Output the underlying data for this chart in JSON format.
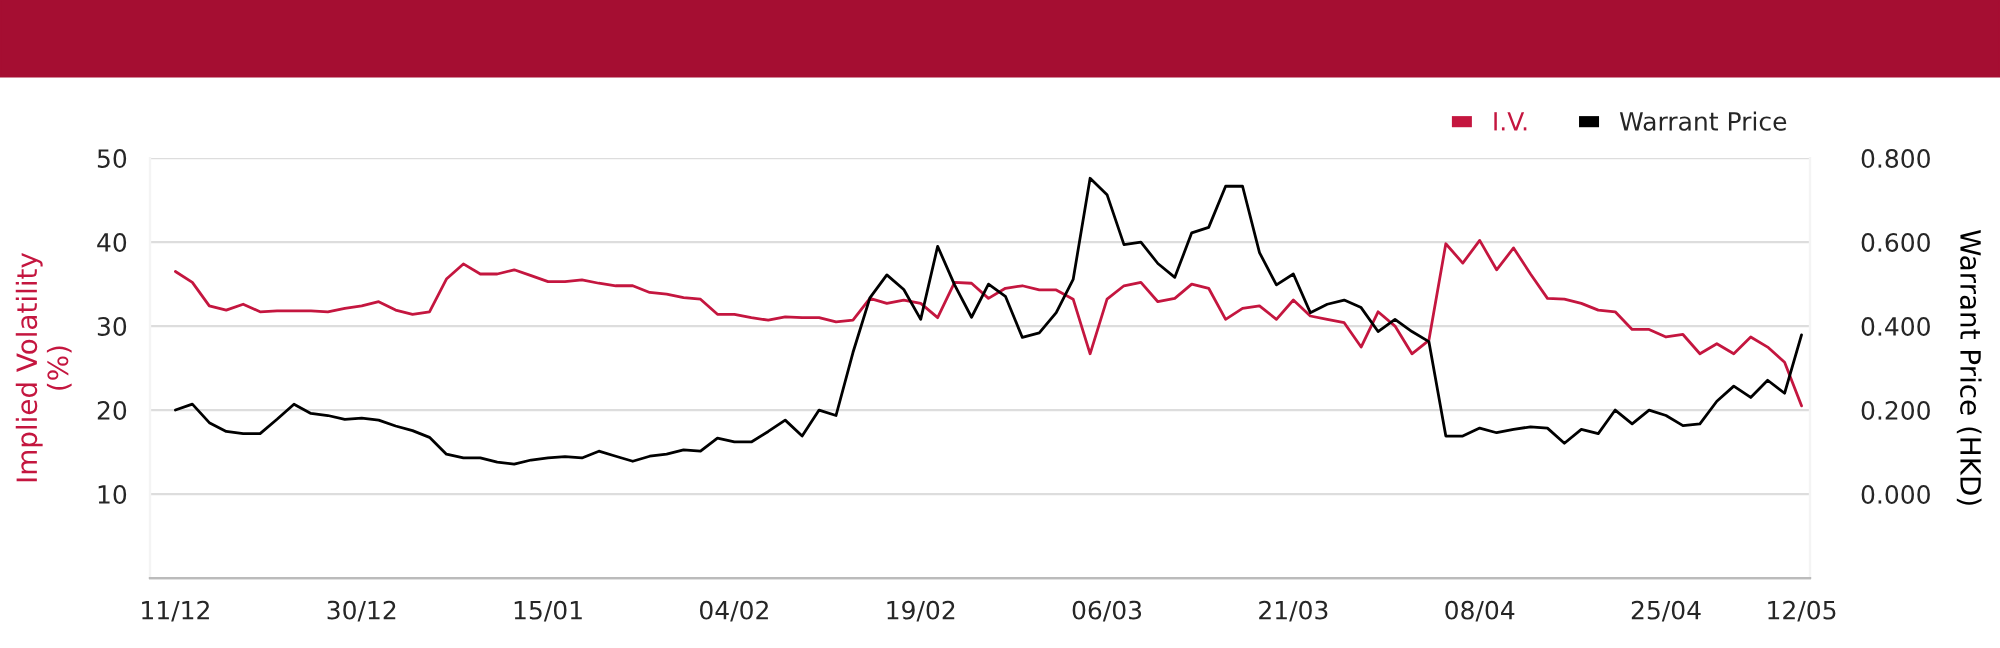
{
  "chart_data": {
    "type": "line",
    "categories": [
      "11/12",
      null,
      null,
      null,
      null,
      null,
      null,
      null,
      null,
      null,
      null,
      "30/12",
      null,
      null,
      null,
      null,
      null,
      null,
      null,
      null,
      null,
      null,
      "15/01",
      null,
      null,
      null,
      null,
      null,
      null,
      null,
      null,
      null,
      null,
      "04/02",
      null,
      null,
      null,
      null,
      null,
      null,
      null,
      null,
      null,
      null,
      "19/02",
      null,
      null,
      null,
      null,
      null,
      null,
      null,
      null,
      null,
      null,
      "06/03",
      null,
      null,
      null,
      null,
      null,
      null,
      null,
      null,
      null,
      null,
      "21/03",
      null,
      null,
      null,
      null,
      null,
      null,
      null,
      null,
      null,
      null,
      "08/04",
      null,
      null,
      null,
      null,
      null,
      null,
      null,
      null,
      null,
      null,
      "25/04",
      null,
      null,
      null,
      null,
      null,
      null,
      null,
      "12/05"
    ],
    "series": [
      {
        "name": "I.V.",
        "color": "#c4163f",
        "values": [
          36.5,
          35.2,
          32.4,
          31.9,
          32.6,
          31.7,
          31.8,
          31.8,
          31.8,
          31.7,
          32.1,
          32.4,
          32.9,
          31.9,
          31.4,
          31.7,
          35.6,
          37.4,
          36.2,
          36.2,
          36.7,
          36.0,
          35.3,
          35.3,
          35.5,
          35.1,
          34.8,
          34.8,
          34.0,
          33.8,
          33.4,
          33.2,
          31.4,
          31.4,
          31.0,
          30.7,
          31.1,
          31.0,
          31.0,
          30.5,
          30.7,
          33.3,
          32.7,
          33.1,
          32.7,
          31.0,
          35.2,
          35.1,
          33.3,
          34.5,
          34.8,
          34.3,
          34.3,
          33.2,
          26.7,
          33.2,
          34.8,
          35.2,
          32.9,
          33.3,
          35.0,
          34.5,
          30.8,
          32.1,
          32.4,
          30.8,
          33.1,
          31.2,
          30.8,
          30.4,
          27.5,
          31.7,
          30.0,
          26.7,
          28.3,
          39.8,
          37.5,
          40.2,
          36.7,
          39.3,
          36.2,
          33.3,
          33.2,
          32.7,
          31.9,
          31.7,
          29.6,
          29.6,
          28.7,
          29.0,
          26.7,
          27.9,
          26.7,
          28.7,
          27.5,
          25.7,
          20.5
        ]
      },
      {
        "name": "Warrant Price",
        "color": "#000000",
        "axis": "y2",
        "values": [
          0.2,
          0.214,
          0.17,
          0.149,
          0.144,
          0.144,
          0.178,
          0.214,
          0.192,
          0.187,
          0.178,
          0.181,
          0.176,
          0.162,
          0.151,
          0.135,
          0.095,
          0.086,
          0.086,
          0.076,
          0.071,
          0.081,
          0.086,
          0.089,
          0.086,
          0.102,
          0.09,
          0.078,
          0.09,
          0.095,
          0.105,
          0.102,
          0.133,
          0.124,
          0.124,
          0.149,
          0.176,
          0.138,
          0.2,
          0.187,
          0.337,
          0.467,
          0.522,
          0.487,
          0.416,
          0.59,
          0.498,
          0.421,
          0.5,
          0.471,
          0.373,
          0.384,
          0.432,
          0.511,
          0.752,
          0.713,
          0.594,
          0.6,
          0.549,
          0.516,
          0.622,
          0.635,
          0.733,
          0.733,
          0.575,
          0.498,
          0.524,
          0.432,
          0.452,
          0.462,
          0.444,
          0.387,
          0.416,
          0.387,
          0.363,
          0.138,
          0.138,
          0.157,
          0.146,
          0.154,
          0.16,
          0.157,
          0.121,
          0.154,
          0.144,
          0.2,
          0.167,
          0.2,
          0.187,
          0.163,
          0.167,
          0.221,
          0.257,
          0.23,
          0.271,
          0.24,
          0.379
        ]
      }
    ],
    "ylabel": "Implied Volatility\n(%)",
    "y2label": "Warrant Price (HKD)",
    "ylim": [
      0,
      50
    ],
    "yticks": [
      {
        "value": 0,
        "label": null
      },
      10,
      20,
      30,
      40,
      50
    ],
    "y2lim": [
      -0.2,
      0.8
    ],
    "y2ticks": [
      {
        "value": 0,
        "label": "0.000"
      },
      {
        "value": 0.2,
        "label": "0.200"
      },
      {
        "value": 0.4,
        "label": "0.400"
      },
      {
        "value": 0.6,
        "label": "0.600"
      },
      {
        "value": 0.8,
        "label": "0.800"
      }
    ],
    "grid": "y",
    "legend": "top right",
    "line_style": "solid"
  }
}
